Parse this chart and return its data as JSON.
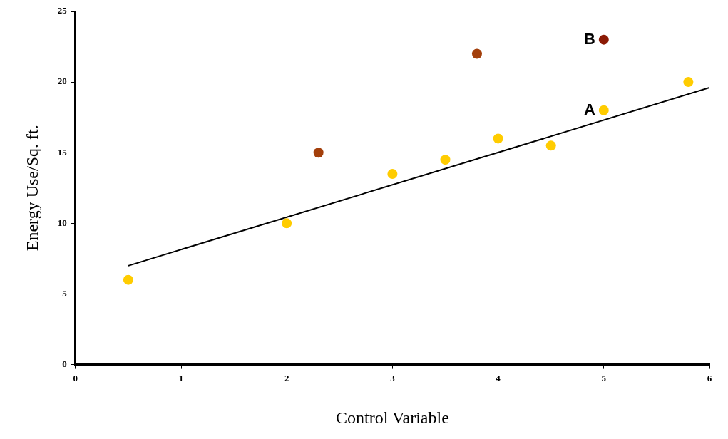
{
  "chart_data": {
    "type": "scatter",
    "xlabel": "Control Variable",
    "ylabel": "Energy Use/Sq. ft.",
    "xlim": [
      0,
      6
    ],
    "xticks": [
      0,
      1,
      2,
      3,
      4,
      5,
      6
    ],
    "ylim": [
      0,
      25
    ],
    "yticks": [
      0,
      5,
      10,
      15,
      20,
      25
    ],
    "grid": false,
    "legend": false,
    "marker": "circle",
    "series": [
      {
        "color": "#ffcc00",
        "x": [
          0.5,
          2,
          3,
          3.5,
          4,
          4.5,
          5,
          5.8
        ],
        "values": [
          6,
          10,
          13.5,
          14.5,
          16,
          15.5,
          18,
          20
        ]
      },
      {
        "color": "#a33f0b",
        "x": [
          2.3,
          3.8
        ],
        "values": [
          15,
          22
        ]
      },
      {
        "color": "#8b1a05",
        "x": [
          5
        ],
        "values": [
          23
        ]
      },
      {
        "type": "line",
        "color": "#000000",
        "x": [
          0.5,
          6
        ],
        "values": [
          7,
          19.6
        ],
        "marker": "none",
        "line_style": "solid"
      }
    ],
    "annotations": [
      {
        "text": "A",
        "x": 5,
        "y": 18
      },
      {
        "text": "B",
        "x": 5,
        "y": 23
      }
    ]
  }
}
